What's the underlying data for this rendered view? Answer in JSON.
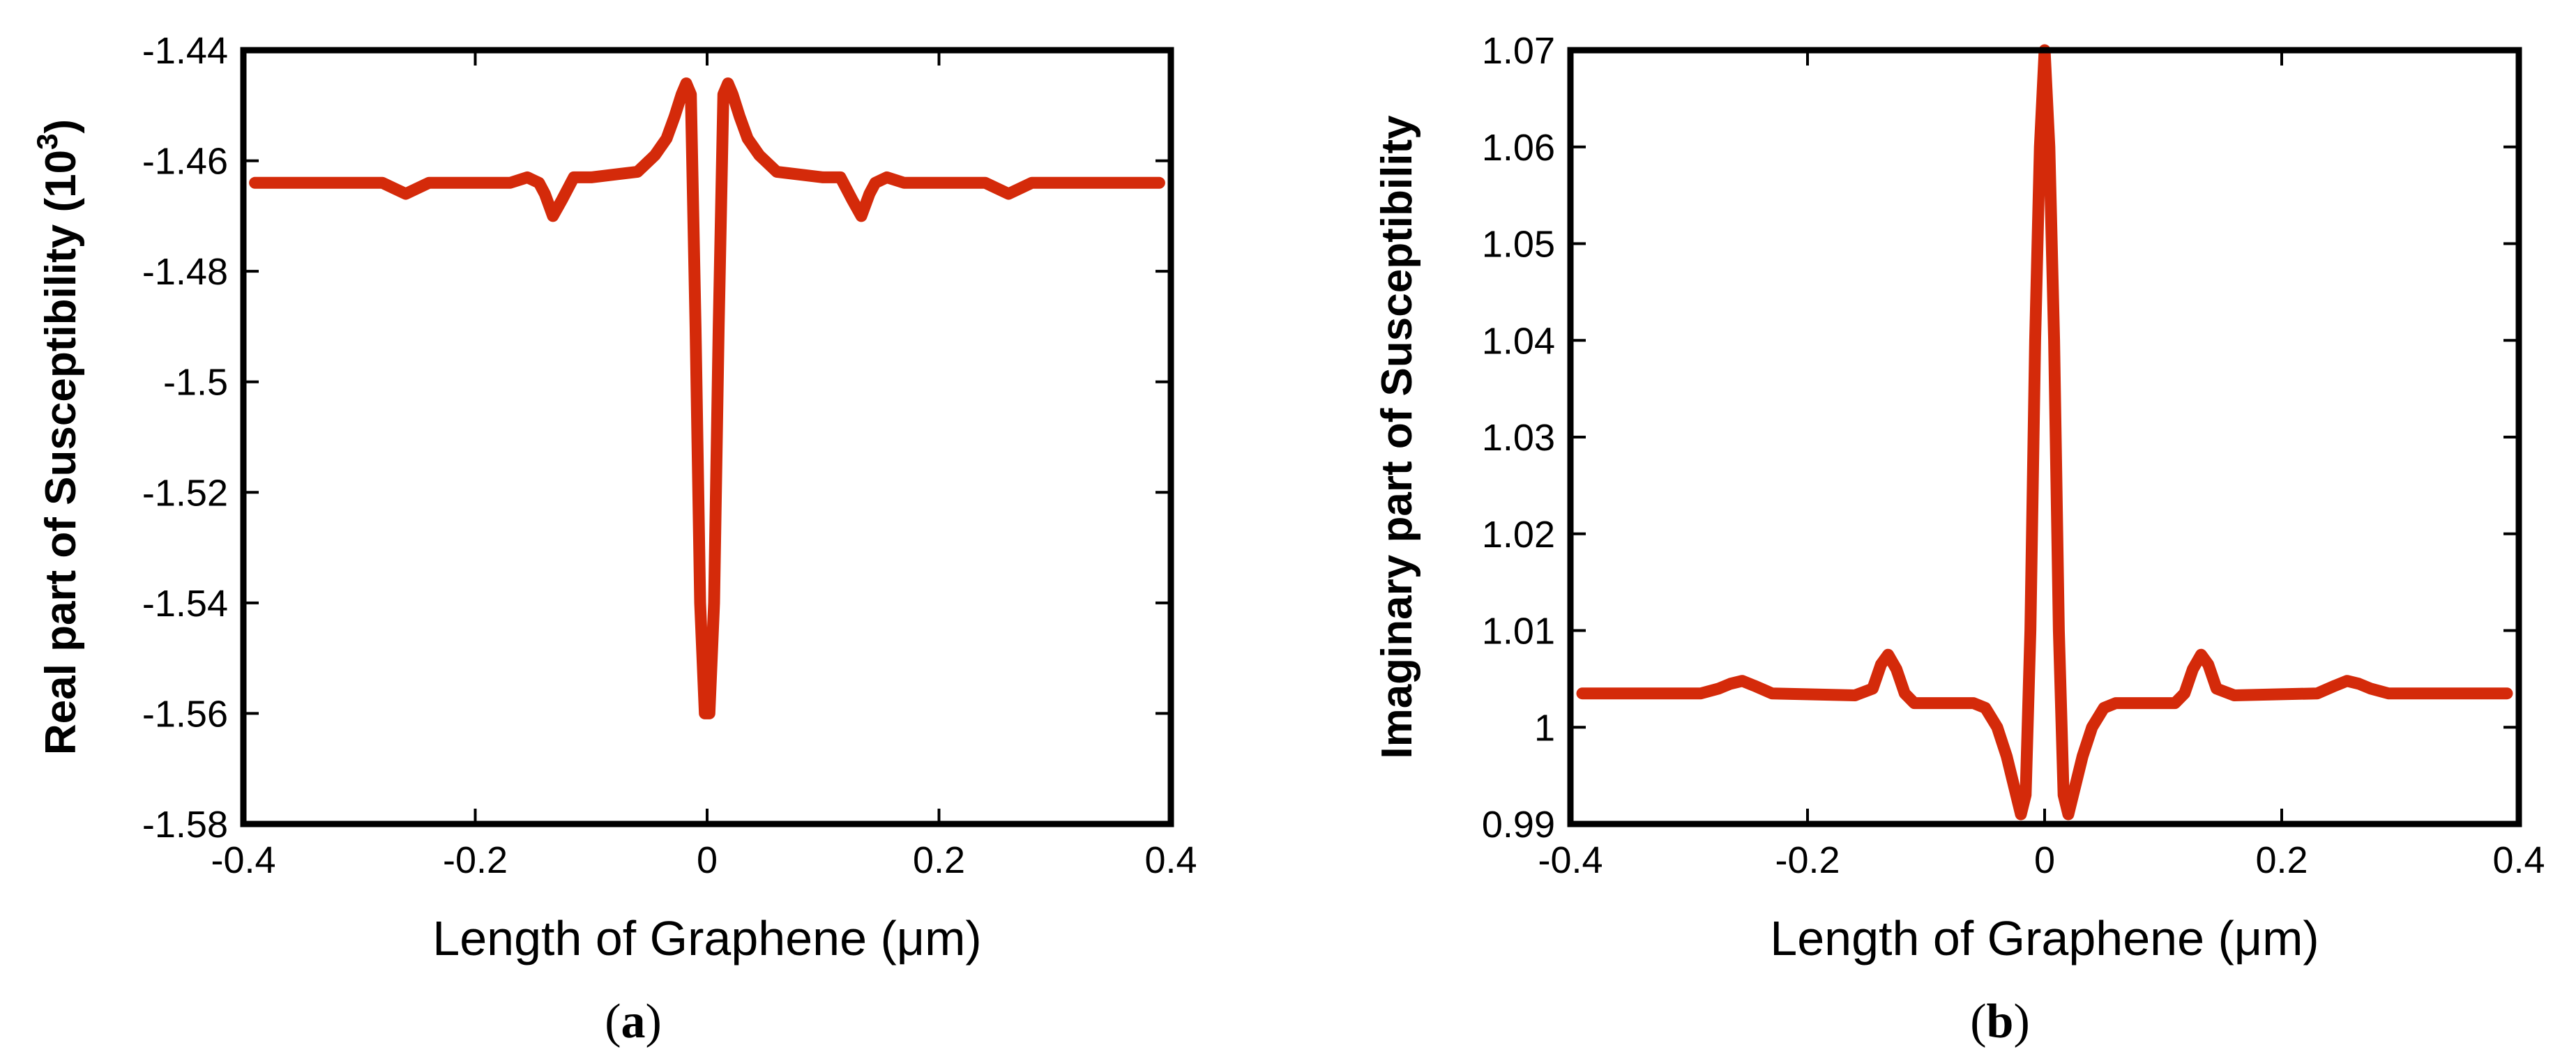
{
  "chart_data": [
    {
      "type": "line",
      "panel": "a",
      "caption": {
        "open": "(",
        "letter": "a",
        "close": ")"
      },
      "xlabel": "Length of Graphene (μm)",
      "ylabel": "Real part of Susceptibility (10",
      "ylabel_sup": "3",
      "ylabel_close": ")",
      "xlim": [
        -0.4,
        0.4
      ],
      "ylim": [
        -1.58,
        -1.44
      ],
      "xticks": [
        -0.4,
        -0.2,
        0,
        0.2,
        0.4
      ],
      "xtick_labels": [
        "-0.4",
        "-0.2",
        "0",
        "0.2",
        "0.4"
      ],
      "yticks": [
        -1.58,
        -1.56,
        -1.54,
        -1.52,
        -1.5,
        -1.48,
        -1.46,
        -1.44
      ],
      "ytick_labels": [
        "-1.58",
        "-1.56",
        "-1.54",
        "-1.52",
        "-1.5",
        "-1.48",
        "-1.46",
        "-1.44"
      ],
      "series": [
        {
          "name": "real",
          "color": "#d42a0a",
          "x": [
            -0.39,
            -0.28,
            -0.27,
            -0.26,
            -0.25,
            -0.24,
            -0.17,
            -0.155,
            -0.145,
            -0.14,
            -0.133,
            -0.125,
            -0.115,
            -0.1,
            -0.06,
            -0.045,
            -0.035,
            -0.028,
            -0.022,
            -0.018,
            -0.014,
            -0.01,
            -0.006,
            -0.002,
            0,
            0.002,
            0.006,
            0.01,
            0.014,
            0.018,
            0.022,
            0.028,
            0.035,
            0.045,
            0.06,
            0.1,
            0.115,
            0.125,
            0.133,
            0.14,
            0.145,
            0.155,
            0.17,
            0.24,
            0.25,
            0.26,
            0.27,
            0.28,
            0.39
          ],
          "y": [
            -1.464,
            -1.464,
            -1.465,
            -1.466,
            -1.465,
            -1.464,
            -1.464,
            -1.463,
            -1.464,
            -1.466,
            -1.47,
            -1.467,
            -1.463,
            -1.463,
            -1.462,
            -1.459,
            -1.456,
            -1.452,
            -1.448,
            -1.446,
            -1.448,
            -1.49,
            -1.54,
            -1.56,
            -1.56,
            -1.56,
            -1.54,
            -1.49,
            -1.448,
            -1.446,
            -1.448,
            -1.452,
            -1.456,
            -1.459,
            -1.462,
            -1.463,
            -1.463,
            -1.467,
            -1.47,
            -1.466,
            -1.464,
            -1.463,
            -1.464,
            -1.464,
            -1.465,
            -1.466,
            -1.465,
            -1.464,
            -1.464
          ]
        }
      ]
    },
    {
      "type": "line",
      "panel": "b",
      "caption": {
        "open": "(",
        "letter": "b",
        "close": ")"
      },
      "xlabel": "Length of Graphene (μm)",
      "ylabel": "Imaginary part of Susceptibility",
      "xlim": [
        -0.4,
        0.4
      ],
      "ylim": [
        0.99,
        1.07
      ],
      "xticks": [
        -0.4,
        -0.2,
        0,
        0.2,
        0.4
      ],
      "xtick_labels": [
        "-0.4",
        "-0.2",
        "0",
        "0.2",
        "0.4"
      ],
      "yticks": [
        0.99,
        1,
        1.01,
        1.02,
        1.03,
        1.04,
        1.05,
        1.06,
        1.07
      ],
      "ytick_labels": [
        "0.99",
        "1",
        "1.01",
        "1.02",
        "1.03",
        "1.04",
        "1.05",
        "1.06",
        "1.07"
      ],
      "series": [
        {
          "name": "imaginary",
          "color": "#d42a0a",
          "x": [
            -0.39,
            -0.29,
            -0.275,
            -0.265,
            -0.255,
            -0.245,
            -0.23,
            -0.16,
            -0.145,
            -0.138,
            -0.132,
            -0.125,
            -0.118,
            -0.11,
            -0.06,
            -0.05,
            -0.04,
            -0.032,
            -0.026,
            -0.02,
            -0.016,
            -0.012,
            -0.008,
            -0.004,
            0,
            0.004,
            0.008,
            0.012,
            0.016,
            0.02,
            0.026,
            0.032,
            0.04,
            0.05,
            0.06,
            0.11,
            0.118,
            0.125,
            0.132,
            0.138,
            0.145,
            0.16,
            0.23,
            0.245,
            0.255,
            0.265,
            0.275,
            0.29,
            0.39
          ],
          "y": [
            1.0035,
            1.0035,
            1.004,
            1.0045,
            1.0048,
            1.0043,
            1.0035,
            1.0033,
            1.004,
            1.0065,
            1.0075,
            1.006,
            1.0035,
            1.0025,
            1.0025,
            1.002,
            1.0,
            0.997,
            0.994,
            0.991,
            0.993,
            1.01,
            1.04,
            1.06,
            1.07,
            1.06,
            1.04,
            1.01,
            0.993,
            0.991,
            0.994,
            0.997,
            1.0,
            1.002,
            1.0025,
            1.0025,
            1.0035,
            1.006,
            1.0075,
            1.0065,
            1.004,
            1.0033,
            1.0035,
            1.0043,
            1.0048,
            1.0045,
            1.004,
            1.0035,
            1.0035
          ]
        }
      ]
    }
  ]
}
